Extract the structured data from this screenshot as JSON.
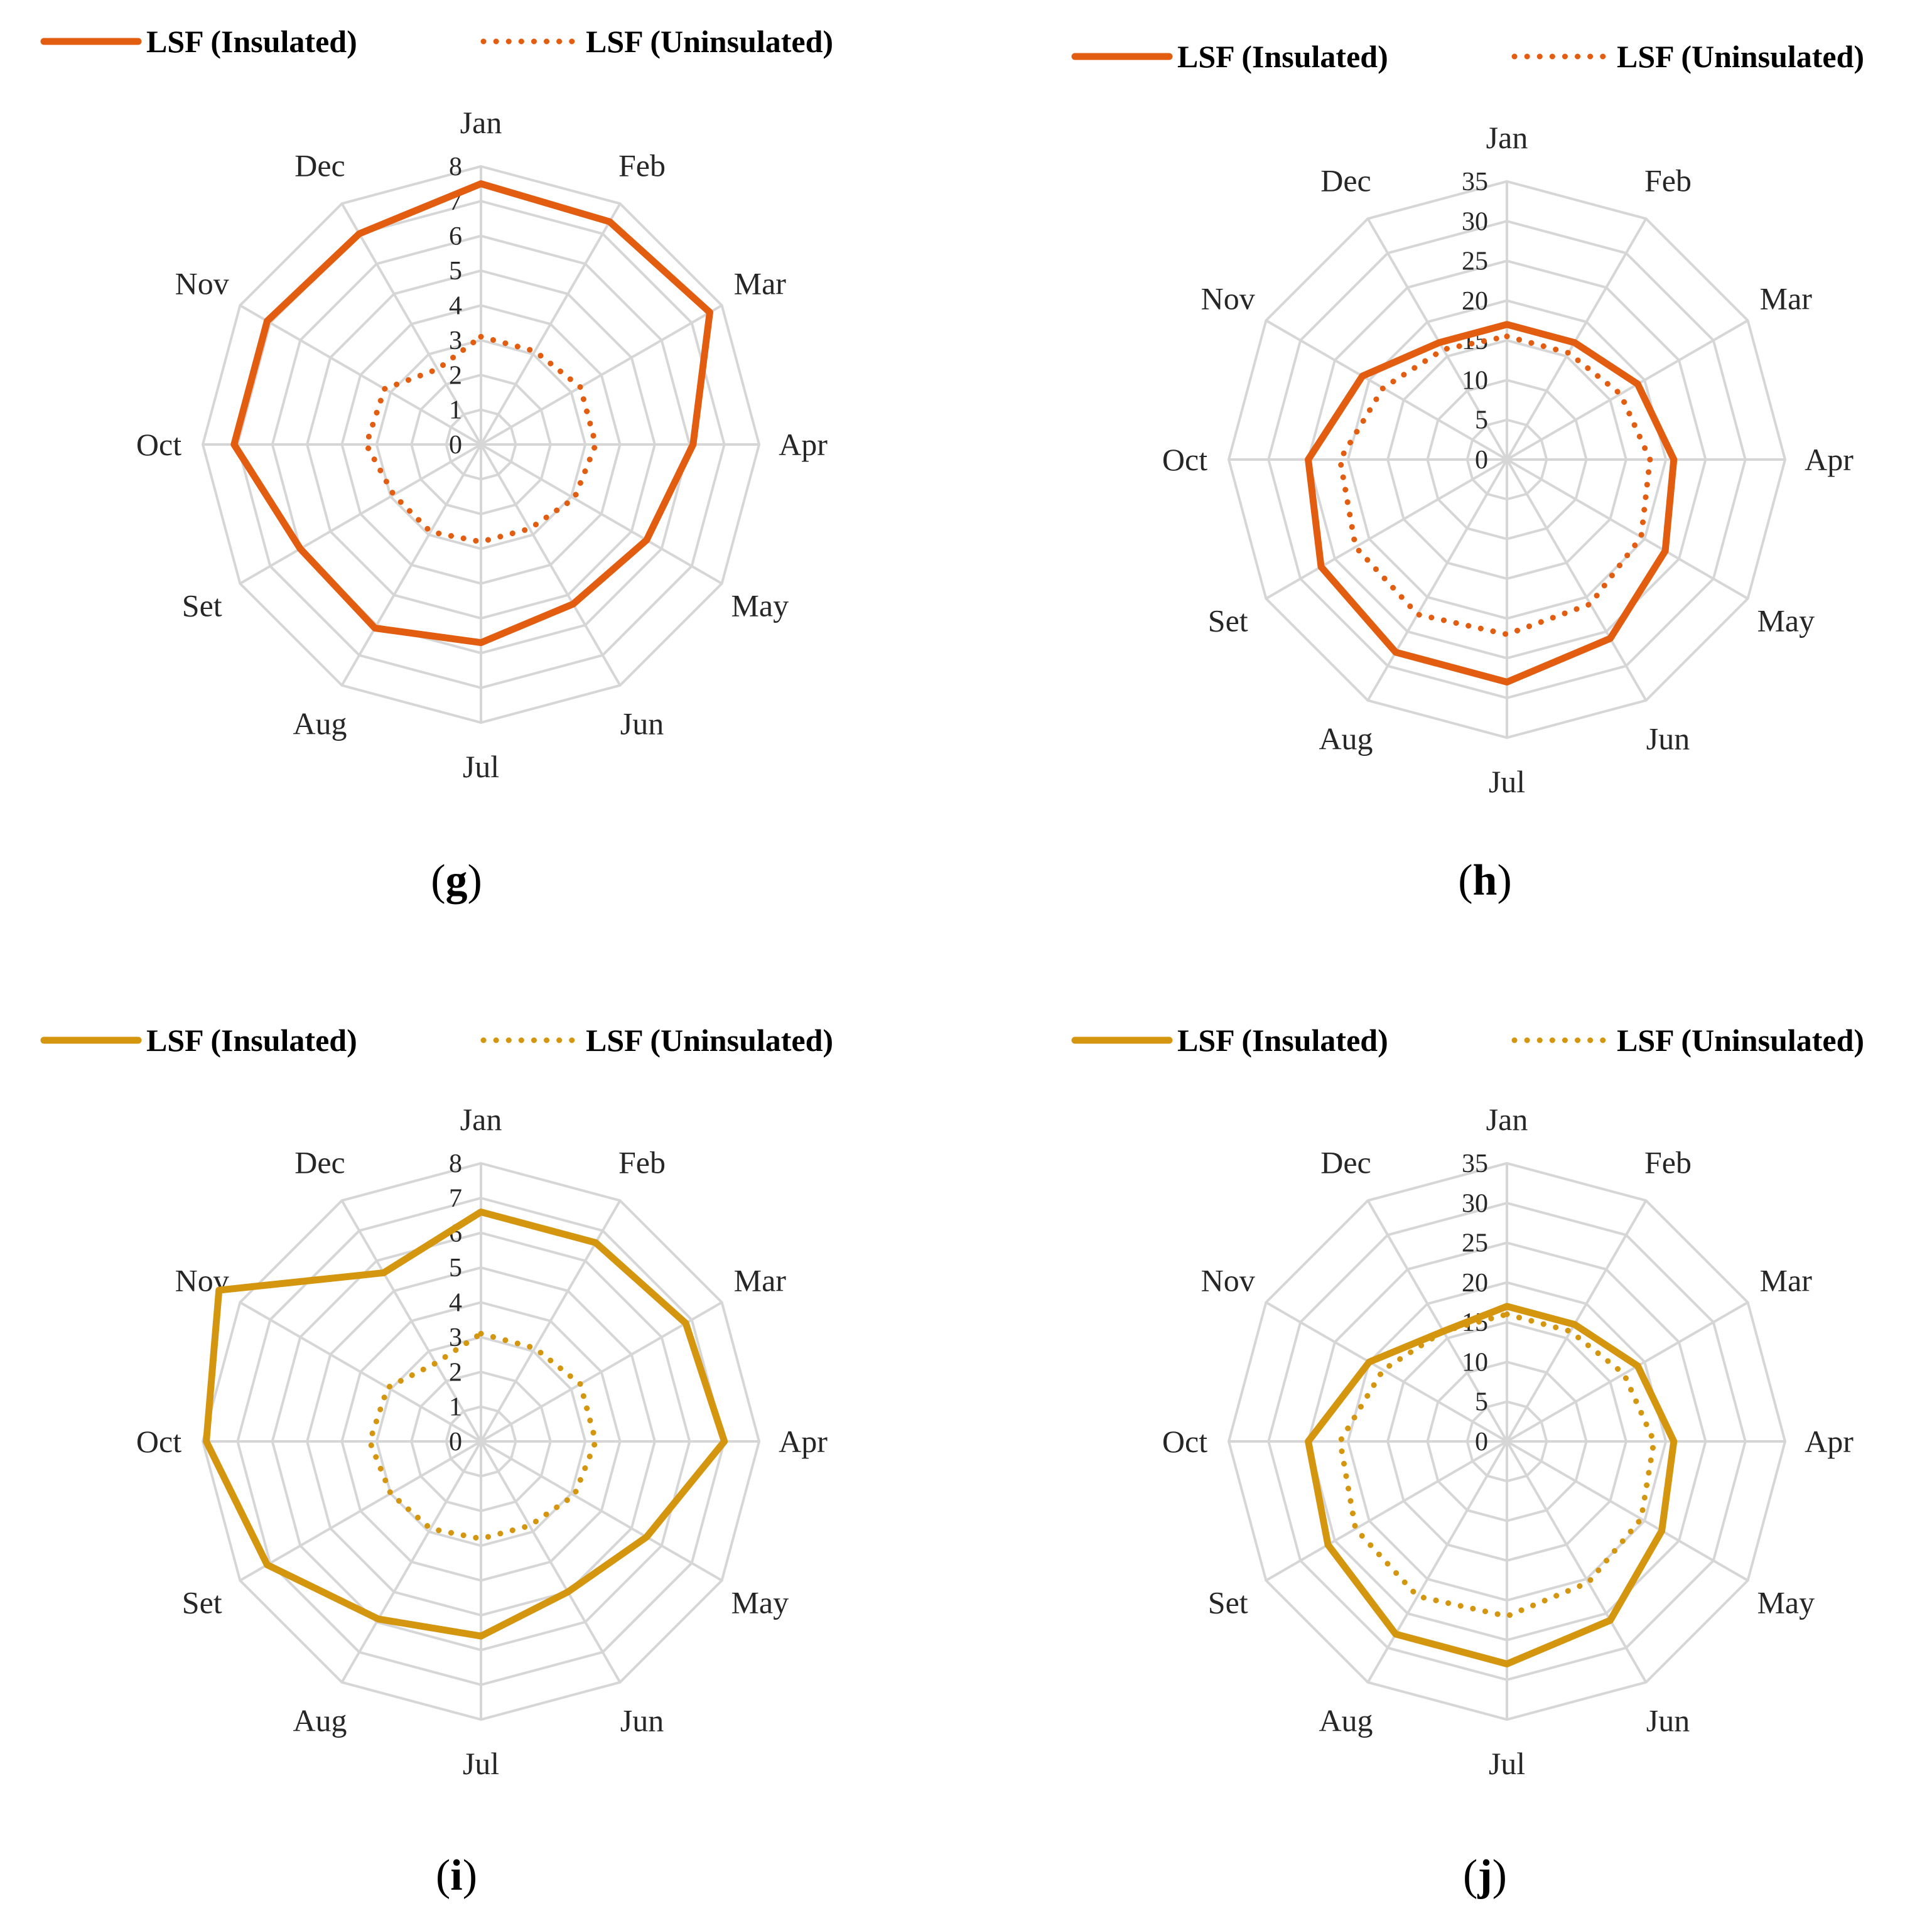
{
  "chart_data": [
    {
      "type": "radar",
      "panel_label": "g",
      "categories": [
        "Jan",
        "Feb",
        "Mar",
        "Apr",
        "May",
        "Jun",
        "Jul",
        "Aug",
        "Set",
        "Oct",
        "Nov",
        "Dec"
      ],
      "rlim": [
        0,
        8
      ],
      "ticks": [
        "0",
        "1",
        "2",
        "3",
        "4",
        "5",
        "6",
        "7",
        "8"
      ],
      "grid": true,
      "legend_position": "top",
      "colors": {
        "series": "#e35d10",
        "grid": "#d6d6d6"
      },
      "series": [
        {
          "name": "LSF (Insulated)",
          "style": "solid",
          "values": [
            7.5,
            7.4,
            7.6,
            6.1,
            5.5,
            5.3,
            5.7,
            6.1,
            6.0,
            7.1,
            7.1,
            7.0
          ]
        },
        {
          "name": "LSF (Uninsulated)",
          "style": "dotted",
          "values": [
            3.1,
            3.1,
            3.3,
            3.3,
            3.1,
            2.8,
            2.8,
            2.9,
            2.9,
            3.3,
            3.2,
            2.5
          ]
        }
      ]
    },
    {
      "type": "radar",
      "panel_label": "h",
      "categories": [
        "Jan",
        "Feb",
        "Mar",
        "Apr",
        "May",
        "Jun",
        "Jul",
        "Aug",
        "Set",
        "Oct",
        "Nov",
        "Dec"
      ],
      "rlim": [
        0,
        35
      ],
      "ticks": [
        "0",
        "5",
        "10",
        "15",
        "20",
        "25",
        "30",
        "35"
      ],
      "grid": true,
      "legend_position": "top",
      "colors": {
        "series": "#e35d10",
        "grid": "#d6d6d6"
      },
      "series": [
        {
          "name": "LSF (Insulated)",
          "style": "solid",
          "values": [
            17,
            17,
            19,
            21,
            23,
            26,
            28,
            28,
            27,
            25,
            21,
            17
          ]
        },
        {
          "name": "LSF (Uninsulated)",
          "style": "dotted",
          "values": [
            15.5,
            15.5,
            16.5,
            18,
            19.5,
            21,
            22,
            22.5,
            22,
            21,
            18,
            16
          ]
        }
      ]
    },
    {
      "type": "radar",
      "panel_label": "i",
      "categories": [
        "Jan",
        "Feb",
        "Mar",
        "Apr",
        "May",
        "Jun",
        "Jul",
        "Aug",
        "Set",
        "Oct",
        "Nov",
        "Dec"
      ],
      "rlim": [
        0,
        8
      ],
      "ticks": [
        "0",
        "1",
        "2",
        "3",
        "4",
        "5",
        "6",
        "7",
        "8"
      ],
      "grid": true,
      "legend_position": "top",
      "colors": {
        "series": "#d4960f",
        "grid": "#d6d6d6"
      },
      "series": [
        {
          "name": "LSF (Insulated)",
          "style": "solid",
          "values": [
            6.6,
            6.6,
            6.8,
            7.0,
            5.5,
            5.0,
            5.6,
            5.9,
            7.1,
            7.9,
            8.7,
            5.6
          ]
        },
        {
          "name": "LSF (Uninsulated)",
          "style": "dotted",
          "values": [
            3.1,
            3.1,
            3.3,
            3.3,
            3.1,
            2.8,
            2.8,
            2.9,
            3.0,
            3.2,
            3.1,
            2.6
          ]
        }
      ]
    },
    {
      "type": "radar",
      "panel_label": "j",
      "categories": [
        "Jan",
        "Feb",
        "Mar",
        "Apr",
        "May",
        "Jun",
        "Jul",
        "Aug",
        "Set",
        "Oct",
        "Nov",
        "Dec"
      ],
      "rlim": [
        0,
        35
      ],
      "ticks": [
        "0",
        "5",
        "10",
        "15",
        "20",
        "25",
        "30",
        "35"
      ],
      "grid": true,
      "legend_position": "top",
      "colors": {
        "series": "#d4960f",
        "grid": "#d6d6d6"
      },
      "series": [
        {
          "name": "LSF (Insulated)",
          "style": "solid",
          "values": [
            17,
            17,
            19,
            21,
            22.5,
            26,
            28,
            28,
            26,
            25,
            20,
            16
          ]
        },
        {
          "name": "LSF (Uninsulated)",
          "style": "dotted",
          "values": [
            16,
            16,
            17,
            18.5,
            19.5,
            20.5,
            22,
            22.5,
            22,
            21,
            18,
            16
          ]
        }
      ]
    }
  ]
}
